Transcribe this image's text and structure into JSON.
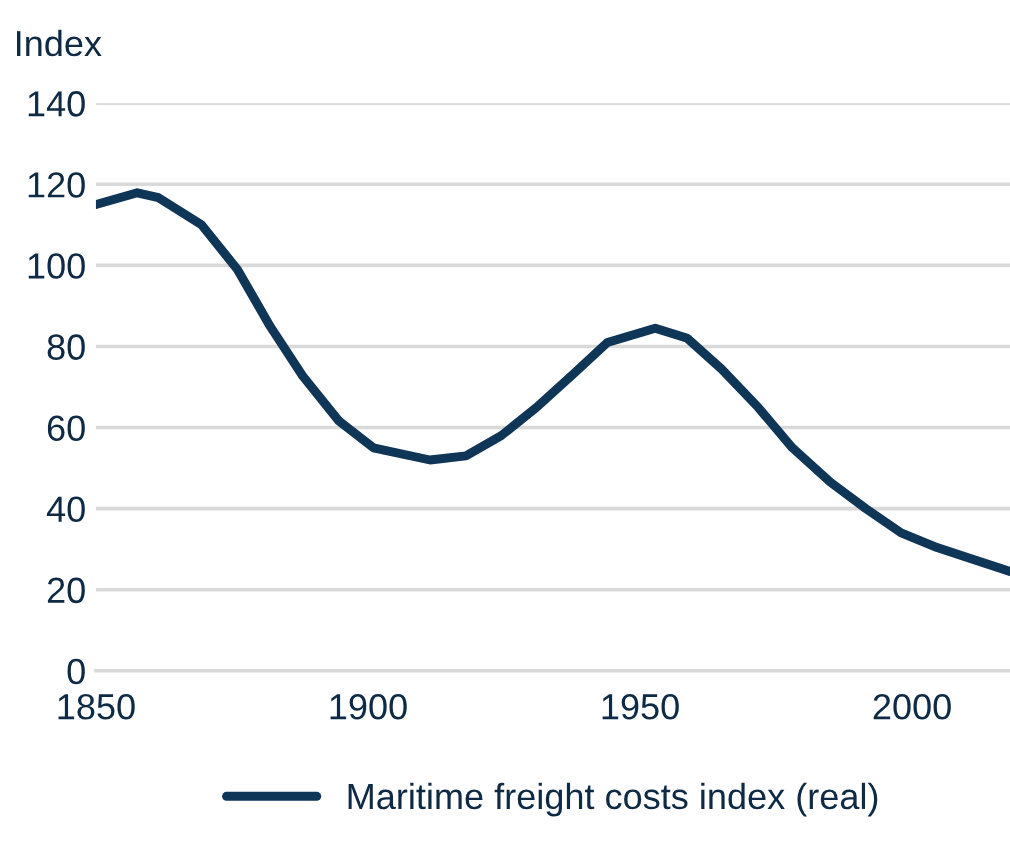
{
  "chart_data": {
    "type": "line",
    "ylabel": "Index",
    "x": [
      1850,
      1857.6,
      1861.5,
      1869.4,
      1876,
      1882,
      1888,
      1894.6,
      1901,
      1911.4,
      1918,
      1924.5,
      1931,
      1938,
      1944,
      1952.8,
      1958.7,
      1965,
      1971.7,
      1978,
      1985,
      1991.5,
      1998,
      2004.6,
      2011,
      2018
    ],
    "series": [
      {
        "name": "Maritime freight costs index (real)",
        "color": "#0f3557",
        "values": [
          115,
          117.9,
          116.7,
          110,
          99,
          85,
          72.7,
          61.7,
          55,
          52,
          53,
          58,
          65,
          73.5,
          81,
          84.5,
          82,
          74.4,
          65,
          55,
          46.5,
          40,
          34,
          30.4,
          27.6,
          24.5
        ]
      }
    ],
    "xlim": [
      1850,
      2018
    ],
    "xticks": [
      1850,
      1900,
      1950,
      2000
    ],
    "ylim": [
      0,
      140
    ],
    "yticks": [
      0,
      20,
      40,
      60,
      80,
      100,
      120,
      140
    ],
    "grid": "y",
    "legend": "bottom",
    "marker": "none",
    "line_style": "solid"
  }
}
